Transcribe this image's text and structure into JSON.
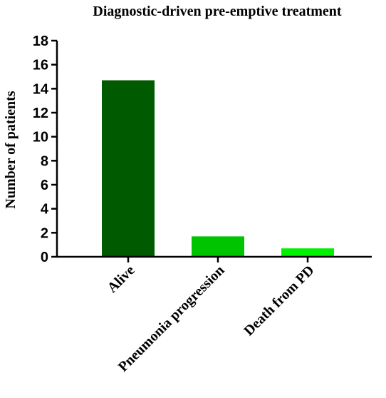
{
  "chart_data": {
    "type": "bar",
    "title": "Diagnostic-driven pre-emptive treatment",
    "xlabel": "",
    "ylabel": "Number of patients",
    "categories": [
      "Alive",
      "Pneumonia progression",
      "Death from PD"
    ],
    "values": [
      14.7,
      1.7,
      0.7
    ],
    "colors": [
      "#005a00",
      "#00c400",
      "#00f000"
    ],
    "ylim": [
      0,
      18
    ],
    "yticks": [
      "0",
      "2",
      "4",
      "6",
      "8",
      "10",
      "12",
      "14",
      "16",
      "18"
    ],
    "grid": false,
    "legend": "none"
  }
}
